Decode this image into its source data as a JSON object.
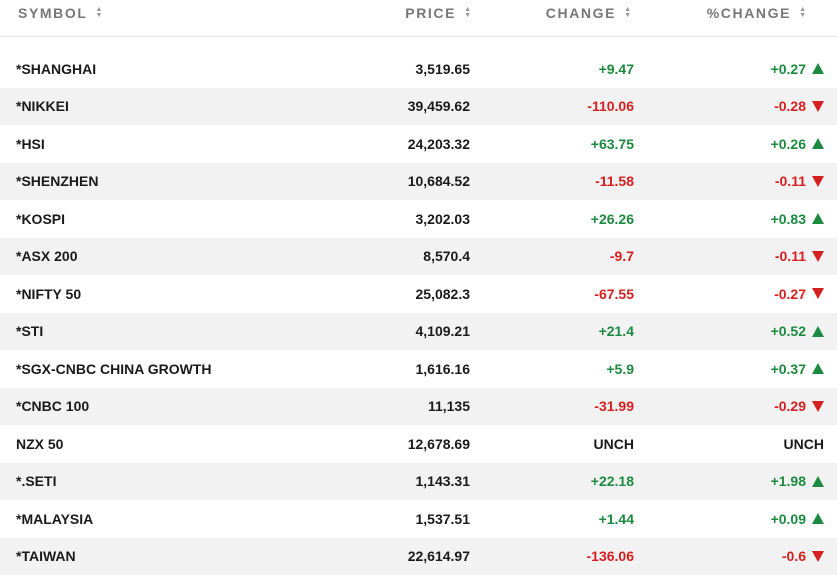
{
  "header": {
    "symbol": "SYMBOL",
    "price": "PRICE",
    "change": "CHANGE",
    "pct_change": "%CHANGE"
  },
  "colors": {
    "positive": "#1c8a3f",
    "negative": "#d62020",
    "stripe": "#f2f2f2"
  },
  "rows": [
    {
      "symbol": "*SHANGHAI",
      "price": "3,519.65",
      "change": "+9.47",
      "pct": "+0.27",
      "dir": "up"
    },
    {
      "symbol": "*NIKKEI",
      "price": "39,459.62",
      "change": "-110.06",
      "pct": "-0.28",
      "dir": "down"
    },
    {
      "symbol": "*HSI",
      "price": "24,203.32",
      "change": "+63.75",
      "pct": "+0.26",
      "dir": "up"
    },
    {
      "symbol": "*SHENZHEN",
      "price": "10,684.52",
      "change": "-11.58",
      "pct": "-0.11",
      "dir": "down"
    },
    {
      "symbol": "*KOSPI",
      "price": "3,202.03",
      "change": "+26.26",
      "pct": "+0.83",
      "dir": "up"
    },
    {
      "symbol": "*ASX 200",
      "price": "8,570.4",
      "change": "-9.7",
      "pct": "-0.11",
      "dir": "down"
    },
    {
      "symbol": "*NIFTY 50",
      "price": "25,082.3",
      "change": "-67.55",
      "pct": "-0.27",
      "dir": "down"
    },
    {
      "symbol": "*STI",
      "price": "4,109.21",
      "change": "+21.4",
      "pct": "+0.52",
      "dir": "up"
    },
    {
      "symbol": "*SGX-CNBC CHINA GROWTH",
      "price": "1,616.16",
      "change": "+5.9",
      "pct": "+0.37",
      "dir": "up"
    },
    {
      "symbol": "*CNBC 100",
      "price": "11,135",
      "change": "-31.99",
      "pct": "-0.29",
      "dir": "down"
    },
    {
      "symbol": "NZX 50",
      "price": "12,678.69",
      "change": "UNCH",
      "pct": "UNCH",
      "dir": "none"
    },
    {
      "symbol": "*.SETI",
      "price": "1,143.31",
      "change": "+22.18",
      "pct": "+1.98",
      "dir": "up"
    },
    {
      "symbol": "*MALAYSIA",
      "price": "1,537.51",
      "change": "+1.44",
      "pct": "+0.09",
      "dir": "up"
    },
    {
      "symbol": "*TAIWAN",
      "price": "22,614.97",
      "change": "-136.06",
      "pct": "-0.6",
      "dir": "down"
    }
  ]
}
